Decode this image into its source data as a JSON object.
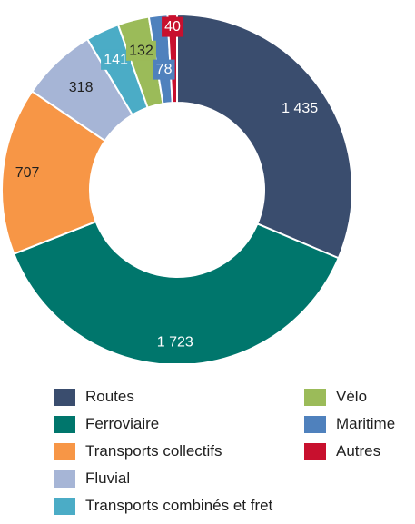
{
  "chart_data": {
    "type": "pie",
    "subtype": "donut",
    "title": "",
    "start_angle_deg": 0,
    "direction": "clockwise",
    "legend_placement": "bottom",
    "slices": [
      {
        "name": "Routes",
        "value": 1435,
        "label": "1 435",
        "color": "#3A4D6E"
      },
      {
        "name": "Ferroviaire",
        "value": 1723,
        "label": "1 723",
        "color": "#00766C"
      },
      {
        "name": "Transports collectifs",
        "value": 707,
        "label": "707",
        "color": "#F79646"
      },
      {
        "name": "Fluvial",
        "value": 318,
        "label": "318",
        "color": "#A6B5D6"
      },
      {
        "name": "Transports combinés et fret",
        "value": 141,
        "label": "141",
        "color": "#4BACC6"
      },
      {
        "name": "Vélo",
        "value": 132,
        "label": "132",
        "color": "#9BBB59"
      },
      {
        "name": "Maritime",
        "value": 78,
        "label": "78",
        "color": "#4F81BD"
      },
      {
        "name": "Autres",
        "value": 40,
        "label": "40",
        "color": "#C8102E"
      }
    ]
  }
}
